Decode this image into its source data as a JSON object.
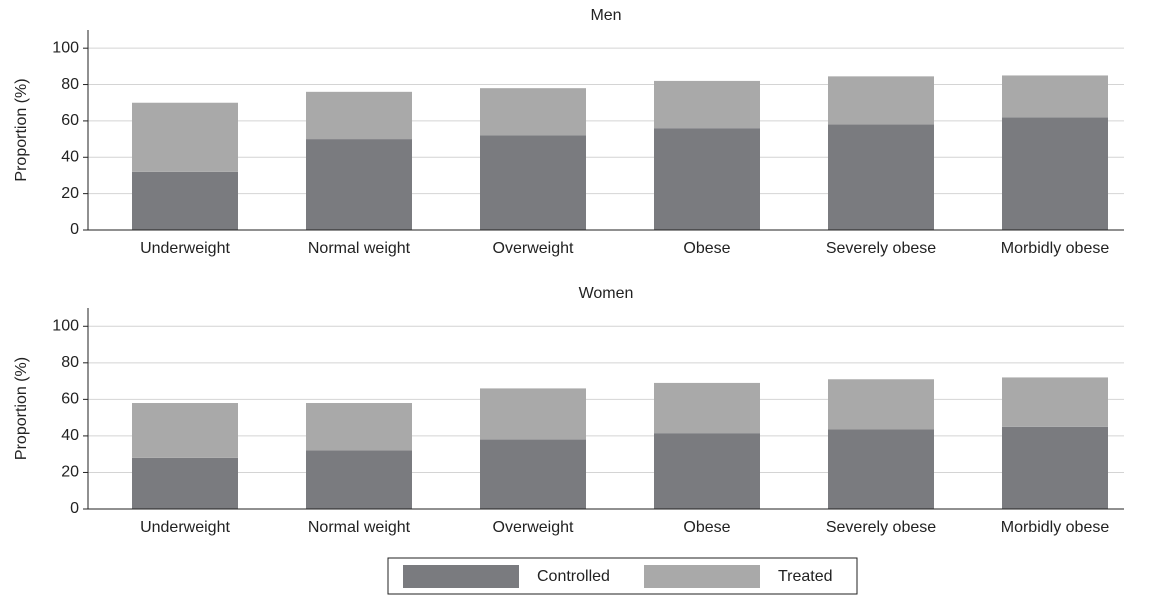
{
  "chart_data": [
    {
      "type": "bar",
      "title": "Men",
      "y_label": "Proportion (%)",
      "categories": [
        "Underweight",
        "Normal weight",
        "Overweight",
        "Obese",
        "Severely obese",
        "Morbidly obese"
      ],
      "series": [
        {
          "name": "Controlled",
          "color": "#7a7b7f",
          "values": [
            32,
            50,
            52,
            56,
            58,
            62
          ]
        },
        {
          "name": "Treated",
          "color": "#a9a9a9",
          "values": [
            38,
            26,
            26,
            26,
            26.5,
            23
          ]
        }
      ],
      "ylim": [
        0,
        110
      ],
      "yticks": [
        0,
        20,
        40,
        60,
        80,
        100
      ],
      "grid": true,
      "stacked": true
    },
    {
      "type": "bar",
      "title": "Women",
      "y_label": "Proportion (%)",
      "categories": [
        "Underweight",
        "Normal weight",
        "Overweight",
        "Obese",
        "Severely obese",
        "Morbidly obese"
      ],
      "series": [
        {
          "name": "Controlled",
          "color": "#7a7b7f",
          "values": [
            28,
            32,
            38,
            41.5,
            43.5,
            45
          ]
        },
        {
          "name": "Treated",
          "color": "#a9a9a9",
          "values": [
            30,
            26,
            28,
            27.5,
            27.5,
            27
          ]
        }
      ],
      "ylim": [
        0,
        110
      ],
      "yticks": [
        0,
        20,
        40,
        60,
        80,
        100
      ],
      "grid": true,
      "stacked": true
    }
  ]
}
